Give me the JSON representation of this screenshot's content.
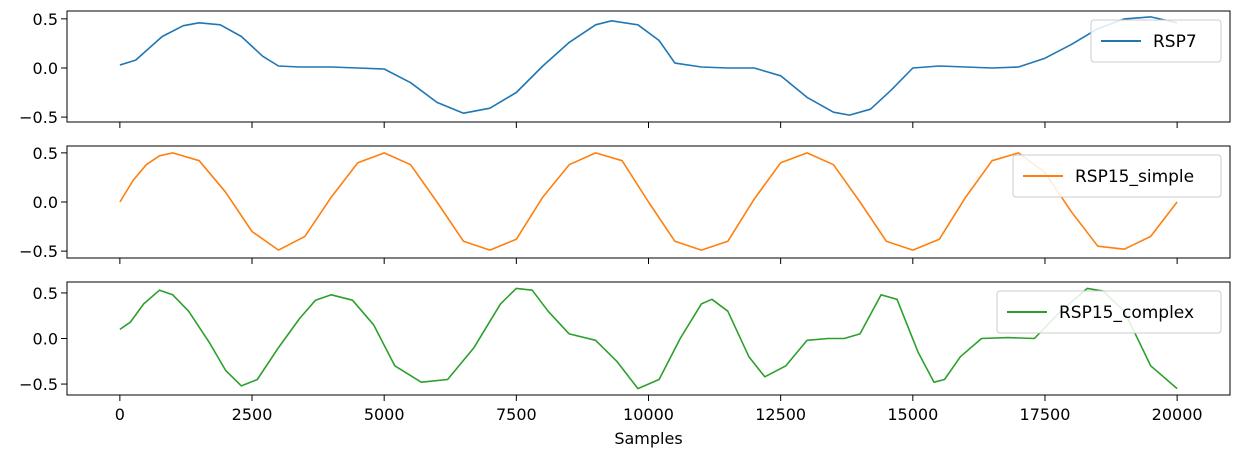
{
  "chart_data": {
    "type": "line",
    "shared_xaxis": {
      "label": "Samples",
      "range": [
        -1000,
        21000
      ],
      "ticks": [
        0,
        2500,
        5000,
        7500,
        10000,
        12500,
        15000,
        17500,
        20000
      ],
      "tick_labels": [
        "0",
        "2500",
        "5000",
        "7500",
        "10000",
        "12500",
        "15000",
        "17500",
        "20000"
      ]
    },
    "legend_position": "upper right",
    "panels": [
      {
        "series_name": "RSP7",
        "color": "#1f77b4",
        "ylim": [
          -0.55,
          0.58
        ],
        "yticks": [
          -0.5,
          0.0,
          0.5
        ],
        "ytick_labels": [
          "−0.5",
          "0.0",
          "0.5"
        ],
        "x": [
          0,
          300,
          800,
          1200,
          1500,
          1900,
          2300,
          2700,
          3000,
          3400,
          4000,
          4500,
          5000,
          5500,
          6000,
          6500,
          7000,
          7500,
          8000,
          8500,
          9000,
          9300,
          9800,
          10200,
          10500,
          11000,
          11500,
          12000,
          12500,
          13000,
          13500,
          13800,
          14200,
          14600,
          15000,
          15500,
          16000,
          16500,
          17000,
          17500,
          18000,
          18500,
          19000,
          19500,
          20000
        ],
        "y": [
          0.03,
          0.08,
          0.32,
          0.43,
          0.46,
          0.44,
          0.32,
          0.12,
          0.02,
          0.01,
          0.01,
          0.0,
          -0.01,
          -0.15,
          -0.35,
          -0.46,
          -0.41,
          -0.25,
          0.02,
          0.26,
          0.44,
          0.48,
          0.44,
          0.28,
          0.05,
          0.01,
          0.0,
          0.0,
          -0.08,
          -0.3,
          -0.45,
          -0.48,
          -0.42,
          -0.22,
          0.0,
          0.02,
          0.01,
          0.0,
          0.01,
          0.1,
          0.24,
          0.4,
          0.5,
          0.52,
          0.46
        ]
      },
      {
        "series_name": "RSP15_simple",
        "color": "#ff7f0e",
        "ylim": [
          -0.57,
          0.57
        ],
        "yticks": [
          -0.5,
          0.0,
          0.5
        ],
        "ytick_labels": [
          "−0.5",
          "0.0",
          "0.5"
        ],
        "x": [
          0,
          250,
          500,
          750,
          1000,
          1500,
          2000,
          2500,
          3000,
          3500,
          4000,
          4500,
          5000,
          5500,
          6000,
          6500,
          7000,
          7500,
          8000,
          8500,
          9000,
          9500,
          10000,
          10500,
          11000,
          11500,
          12000,
          12500,
          13000,
          13500,
          14000,
          14500,
          15000,
          15500,
          16000,
          16500,
          17000,
          17500,
          18000,
          18500,
          19000,
          19500,
          20000
        ],
        "y": [
          0.0,
          0.22,
          0.38,
          0.47,
          0.5,
          0.42,
          0.1,
          -0.3,
          -0.49,
          -0.35,
          0.05,
          0.4,
          0.5,
          0.38,
          0.0,
          -0.4,
          -0.49,
          -0.38,
          0.05,
          0.38,
          0.5,
          0.42,
          0.0,
          -0.4,
          -0.49,
          -0.4,
          0.03,
          0.4,
          0.5,
          0.38,
          0.0,
          -0.4,
          -0.49,
          -0.38,
          0.05,
          0.42,
          0.5,
          0.3,
          -0.1,
          -0.45,
          -0.48,
          -0.35,
          0.0
        ]
      },
      {
        "series_name": "RSP15_complex",
        "color": "#2ca02c",
        "ylim": [
          -0.62,
          0.62
        ],
        "yticks": [
          -0.5,
          0.0,
          0.5
        ],
        "ytick_labels": [
          "−0.5",
          "0.0",
          "0.5"
        ],
        "x": [
          0,
          200,
          450,
          750,
          1000,
          1300,
          1700,
          2000,
          2300,
          2600,
          3000,
          3400,
          3700,
          4000,
          4400,
          4800,
          5200,
          5700,
          6200,
          6700,
          7200,
          7500,
          7800,
          8100,
          8500,
          9000,
          9400,
          9800,
          10200,
          10600,
          11000,
          11200,
          11500,
          11900,
          12200,
          12600,
          13000,
          13400,
          13700,
          14000,
          14400,
          14700,
          15100,
          15400,
          15600,
          15900,
          16300,
          16800,
          17300,
          17800,
          18300,
          18600,
          19000,
          19500,
          20000
        ],
        "y": [
          0.1,
          0.18,
          0.38,
          0.53,
          0.48,
          0.3,
          -0.05,
          -0.35,
          -0.52,
          -0.45,
          -0.1,
          0.22,
          0.42,
          0.48,
          0.42,
          0.15,
          -0.3,
          -0.48,
          -0.45,
          -0.1,
          0.38,
          0.55,
          0.53,
          0.3,
          0.05,
          -0.02,
          -0.25,
          -0.55,
          -0.45,
          0.0,
          0.38,
          0.43,
          0.3,
          -0.2,
          -0.42,
          -0.3,
          -0.02,
          0.0,
          0.0,
          0.05,
          0.48,
          0.43,
          -0.15,
          -0.48,
          -0.45,
          -0.2,
          0.0,
          0.01,
          0.0,
          0.3,
          0.55,
          0.52,
          0.3,
          -0.3,
          -0.55
        ]
      }
    ]
  }
}
